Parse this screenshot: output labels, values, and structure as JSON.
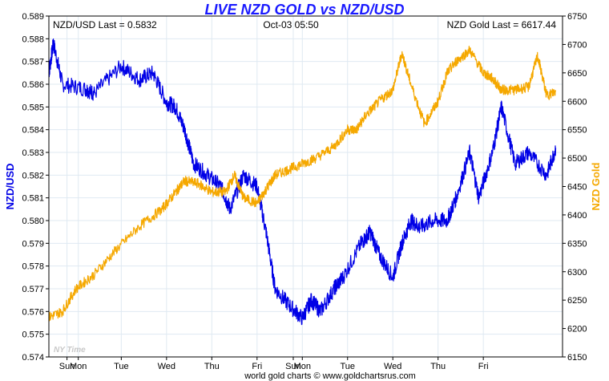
{
  "header": {
    "title": "LIVE NZD GOLD vs NZD/USD",
    "left_readout": "NZD/USD Last = 0.5832",
    "center_readout": "Oct-03  05:50",
    "right_readout": "NZD Gold Last = 6617.44"
  },
  "watermark": "NY Time",
  "footer": "world gold charts © www.goldchartsrus.com",
  "colors": {
    "title": "#1a1aff",
    "nzdusd": "#0000e6",
    "gold": "#f5a800",
    "grid": "#dfe9f2",
    "frame": "#000000"
  },
  "chart_data": {
    "type": "line",
    "title": "LIVE NZD GOLD vs NZD/USD",
    "x_tick_labels": [
      "Sun",
      "Mon",
      "Tue",
      "Wed",
      "Thu",
      "Fri",
      "Sun",
      "Mon",
      "Tue",
      "Wed",
      "Thu",
      "Fri"
    ],
    "y_left": {
      "label": "NZD/USD",
      "range": [
        0.574,
        0.589
      ],
      "ticks": [
        "0.574",
        "0.575",
        "0.576",
        "0.577",
        "0.578",
        "0.579",
        "0.580",
        "0.581",
        "0.582",
        "0.583",
        "0.584",
        "0.585",
        "0.586",
        "0.587",
        "0.588",
        "0.589"
      ]
    },
    "y_right": {
      "label": "NZD Gold",
      "range": [
        6150,
        6750
      ],
      "ticks": [
        "6150",
        "6200",
        "6250",
        "6300",
        "6350",
        "6400",
        "6450",
        "6500",
        "6550",
        "6600",
        "6650",
        "6700",
        "6750"
      ]
    },
    "grid": true,
    "series": [
      {
        "name": "NZD/USD",
        "axis": "left",
        "x": [
          0,
          0.1,
          0.3,
          0.8,
          1.0,
          1.6,
          2.0,
          2.3,
          2.6,
          2.8,
          3.0,
          3.2,
          3.5,
          3.8,
          4.0,
          4.3,
          4.6,
          4.8,
          5.0,
          5.3,
          5.6,
          5.8,
          6.0,
          6.3,
          6.5,
          6.9,
          7.1,
          7.3,
          7.6,
          7.8,
          8.0,
          8.2,
          8.5,
          8.8,
          9.0,
          9.3,
          9.5,
          9.8,
          10.0,
          10.3,
          10.6,
          11.0,
          11.2
        ],
        "values": [
          0.5865,
          0.5878,
          0.586,
          0.5858,
          0.5856,
          0.5868,
          0.5862,
          0.5865,
          0.5852,
          0.585,
          0.584,
          0.5825,
          0.582,
          0.5815,
          0.5805,
          0.582,
          0.5815,
          0.5795,
          0.577,
          0.5763,
          0.5757,
          0.5765,
          0.576,
          0.577,
          0.5775,
          0.579,
          0.5795,
          0.5785,
          0.5775,
          0.579,
          0.58,
          0.5797,
          0.58,
          0.58,
          0.581,
          0.583,
          0.581,
          0.583,
          0.585,
          0.5825,
          0.583,
          0.582,
          0.5832
        ]
      },
      {
        "name": "NZD Gold",
        "axis": "right",
        "x": [
          0,
          0.3,
          0.6,
          1.0,
          1.5,
          2.0,
          2.5,
          2.8,
          3.0,
          3.3,
          3.6,
          3.9,
          4.1,
          4.3,
          4.6,
          4.8,
          5.0,
          5.3,
          5.6,
          5.9,
          6.3,
          6.6,
          6.8,
          7.0,
          7.3,
          7.6,
          7.8,
          8.0,
          8.3,
          8.6,
          8.8,
          9.0,
          9.3,
          9.6,
          9.8,
          10.0,
          10.3,
          10.6,
          10.8,
          11.0,
          11.2
        ],
        "values": [
          6220,
          6230,
          6270,
          6295,
          6340,
          6380,
          6410,
          6440,
          6460,
          6455,
          6440,
          6440,
          6470,
          6430,
          6420,
          6445,
          6470,
          6480,
          6490,
          6500,
          6520,
          6550,
          6550,
          6575,
          6600,
          6620,
          6685,
          6630,
          6560,
          6600,
          6650,
          6670,
          6690,
          6650,
          6640,
          6620,
          6620,
          6625,
          6680,
          6610,
          6617
        ]
      }
    ]
  }
}
